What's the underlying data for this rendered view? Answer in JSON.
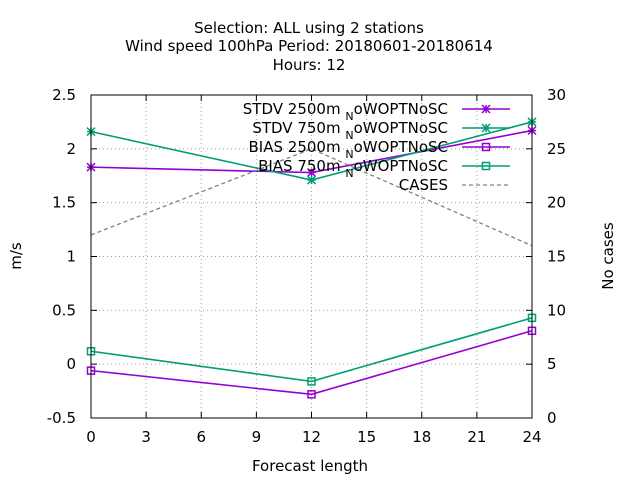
{
  "chart_data": {
    "type": "line",
    "title_lines": [
      "Selection: ALL using     2 stations",
      "Wind speed 100hPa   Period: 20180601-20180614",
      "Hours:  12"
    ],
    "xlabel": "Forecast length",
    "ylabel": "m/s",
    "y2label": "No cases",
    "x": [
      0,
      12,
      24
    ],
    "xlim": [
      0,
      24
    ],
    "xticks": [
      0,
      3,
      6,
      9,
      12,
      15,
      18,
      21,
      24
    ],
    "ylim": [
      -0.5,
      2.5
    ],
    "yticks": [
      -0.5,
      0,
      0.5,
      1,
      1.5,
      2,
      2.5
    ],
    "ytick_labels": [
      "-0.5",
      "0",
      "0.5",
      "1",
      "1.5",
      "2",
      "2.5"
    ],
    "y2lim": [
      0,
      30
    ],
    "y2ticks": [
      0,
      5,
      10,
      15,
      20,
      25,
      30
    ],
    "grid": true,
    "legend_position": "top-right",
    "series": [
      {
        "name": "STDV 2500m_NoWOPTNoSC",
        "legend_main": "STDV 2500m",
        "legend_sub": "N",
        "legend_tail": "oWOPTNoSC",
        "values": [
          1.83,
          1.78,
          2.17
        ],
        "color": "#9400d3",
        "marker": "cross",
        "dash": "solid",
        "axis": "y"
      },
      {
        "name": "STDV 750m_NoWOPTNoSC",
        "legend_main": "STDV 750m",
        "legend_sub": "N",
        "legend_tail": "oWOPTNoSC",
        "values": [
          2.16,
          1.71,
          2.25
        ],
        "color": "#009e73",
        "marker": "cross",
        "dash": "solid",
        "axis": "y"
      },
      {
        "name": "BIAS 2500m_NoWOPTNoSC",
        "legend_main": "BIAS 2500m",
        "legend_sub": "N",
        "legend_tail": "oWOPTNoSC",
        "values": [
          -0.06,
          -0.28,
          0.31
        ],
        "color": "#9400d3",
        "marker": "square",
        "dash": "solid",
        "axis": "y"
      },
      {
        "name": "BIAS 750m_NoWOPTNoSC",
        "legend_main": "BIAS 750m",
        "legend_sub": "N",
        "legend_tail": "oWOPTNoSC",
        "values": [
          0.12,
          -0.16,
          0.43
        ],
        "color": "#009e73",
        "marker": "square",
        "dash": "solid",
        "axis": "y"
      },
      {
        "name": "CASES",
        "legend_main": "CASES",
        "legend_sub": "",
        "legend_tail": "",
        "values": [
          17,
          25,
          16
        ],
        "color": "#808080",
        "marker": "none",
        "dash": "dashed",
        "axis": "y2"
      }
    ]
  }
}
